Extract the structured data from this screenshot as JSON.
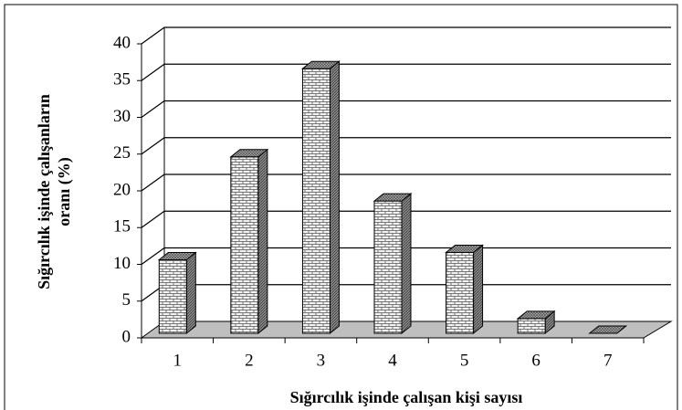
{
  "chart_data": {
    "type": "bar3d",
    "xlabel": "Sığırcılık işinde çalışan kişi sayısı",
    "ylabel": [
      "Sığırcılık işinde çalışanların",
      "oranı (%)"
    ],
    "categories": [
      "1",
      "2",
      "3",
      "4",
      "5",
      "6",
      "7"
    ],
    "values": [
      10,
      24,
      36,
      18,
      11,
      2,
      0
    ],
    "ylim": [
      0,
      40
    ],
    "yticks": [
      0,
      5,
      10,
      15,
      20,
      25,
      30,
      35,
      40
    ],
    "grid": true,
    "color": "#e6e6e6"
  }
}
